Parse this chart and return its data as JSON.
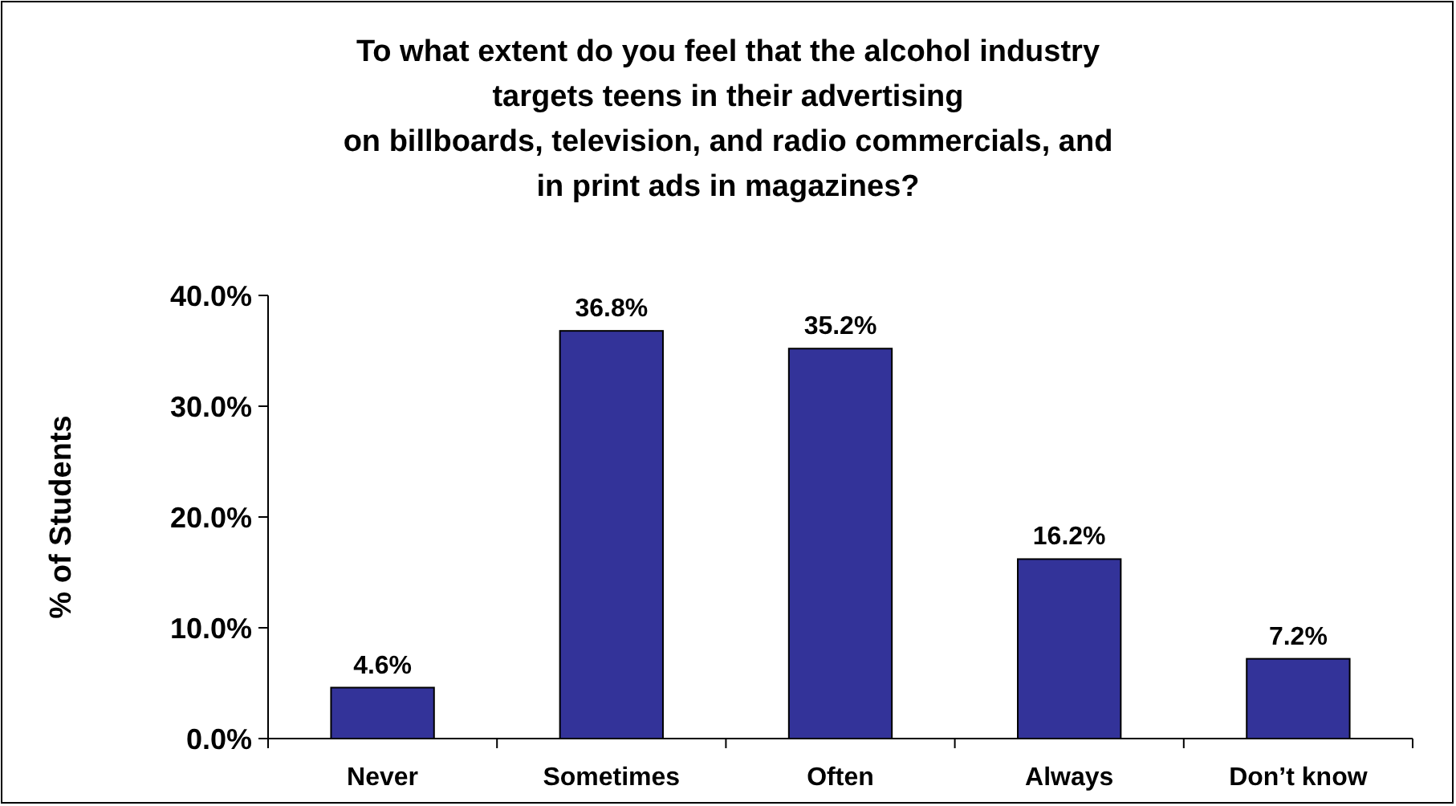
{
  "chart_data": {
    "type": "bar",
    "title": "To what extent do you feel that the alcohol industry\ntargets teens in their advertising\non billboards, television, and radio commercials, and\nin print ads in magazines?",
    "ylabel": "% of Students",
    "categories": [
      "Never",
      "Sometimes",
      "Often",
      "Always",
      "Don’t know"
    ],
    "values": [
      4.6,
      36.8,
      35.2,
      16.2,
      7.2
    ],
    "value_labels": [
      "4.6%",
      "36.8%",
      "35.2%",
      "16.2%",
      "7.2%"
    ],
    "color": "#333399",
    "ylim": [
      0,
      40
    ],
    "yticks": [
      {
        "value": 0,
        "label": "0.0%"
      },
      {
        "value": 10,
        "label": "10.0%"
      },
      {
        "value": 20,
        "label": "20.0%"
      },
      {
        "value": 30,
        "label": "30.0%"
      },
      {
        "value": 40,
        "label": "40.0%"
      }
    ],
    "grid": false
  }
}
